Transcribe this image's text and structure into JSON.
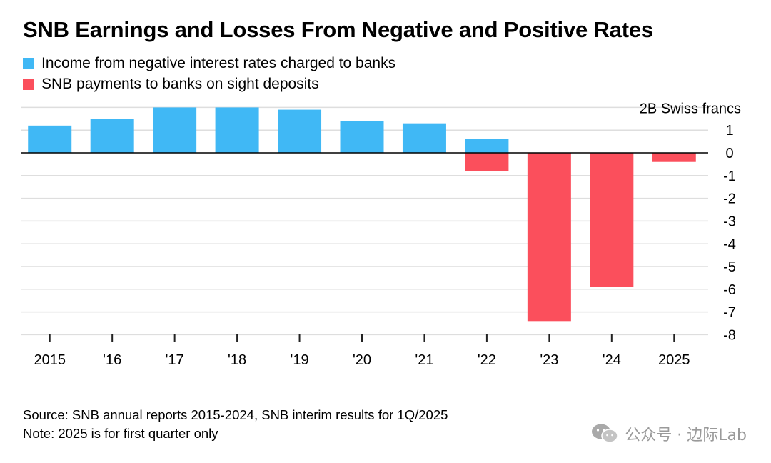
{
  "chart_data": {
    "type": "bar",
    "title": "SNB Earnings and Losses From Negative and Positive Rates",
    "unit_label": "2B Swiss francs",
    "categories": [
      "2015",
      "'16",
      "'17",
      "'18",
      "'19",
      "'20",
      "'21",
      "'22",
      "'23",
      "'24",
      "2025"
    ],
    "series": [
      {
        "name": "Income from negative interest rates charged to banks",
        "color": "#40b8f5",
        "values": [
          1.2,
          1.5,
          2.0,
          2.0,
          1.9,
          1.4,
          1.3,
          0.6,
          0,
          0,
          0
        ]
      },
      {
        "name": "SNB payments to banks on sight deposits",
        "color": "#fb4f5c",
        "values": [
          0,
          0,
          0,
          0,
          0,
          0,
          0,
          -0.8,
          -7.4,
          -5.9,
          -0.4
        ]
      }
    ],
    "ylim": [
      -8,
      2
    ],
    "yticks": [
      "1",
      "0",
      "-1",
      "-2",
      "-3",
      "-4",
      "-5",
      "-6",
      "-7",
      "-8"
    ],
    "grid": true,
    "legend_position": "top-left"
  },
  "footnotes": {
    "source": "Source: SNB annual reports 2015-2024, SNB interim results for 1Q/2025",
    "note": "Note: 2025 is for first quarter only"
  },
  "watermark": {
    "text": "公众号 · 边际Lab",
    "icon": "wechat-icon"
  }
}
